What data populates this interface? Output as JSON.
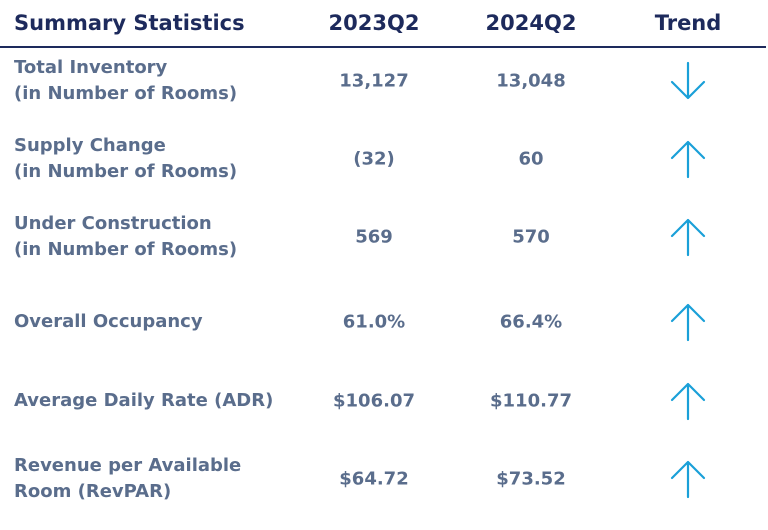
{
  "colors": {
    "header_text": "#1d2a5c",
    "body_text": "#5a6d8c",
    "arrow": "#1aa0d8",
    "divider": "#1d2a5c"
  },
  "header": {
    "label": "Summary Statistics",
    "col1": "2023Q2",
    "col2": "2024Q2",
    "trend": "Trend"
  },
  "rows": [
    {
      "label_line1": "Total Inventory",
      "label_line2": "(in Number of Rooms)",
      "v2023": "13,127",
      "v2024": "13,048",
      "trend": "down"
    },
    {
      "label_line1": "Supply Change",
      "label_line2": "(in Number of Rooms)",
      "v2023": "(32)",
      "v2024": "60",
      "trend": "up"
    },
    {
      "label_line1": "Under Construction",
      "label_line2": "(in Number of Rooms)",
      "v2023": "569",
      "v2024": "570",
      "trend": "up"
    },
    {
      "label_line1": "Overall Occupancy",
      "label_line2": "",
      "v2023": "61.0%",
      "v2024": "66.4%",
      "trend": "up"
    },
    {
      "label_line1": "Average Daily Rate (ADR)",
      "label_line2": "",
      "v2023": "$106.07",
      "v2024": "$110.77",
      "trend": "up"
    },
    {
      "label_line1": "Revenue per Available",
      "label_line2": "Room (RevPAR)",
      "v2023": "$64.72",
      "v2024": "$73.52",
      "trend": "up"
    }
  ],
  "chart_data": {
    "type": "table",
    "columns": [
      "Summary Statistics",
      "2023Q2",
      "2024Q2",
      "Trend"
    ],
    "rows": [
      [
        "Total Inventory (in Number of Rooms)",
        "13,127",
        "13,048",
        "down"
      ],
      [
        "Supply Change (in Number of Rooms)",
        "(32)",
        "60",
        "up"
      ],
      [
        "Under Construction (in Number of Rooms)",
        "569",
        "570",
        "up"
      ],
      [
        "Overall Occupancy",
        "61.0%",
        "66.4%",
        "up"
      ],
      [
        "Average Daily Rate (ADR)",
        "$106.07",
        "$110.77",
        "up"
      ],
      [
        "Revenue per Available Room (RevPAR)",
        "$64.72",
        "$73.52",
        "up"
      ]
    ]
  }
}
